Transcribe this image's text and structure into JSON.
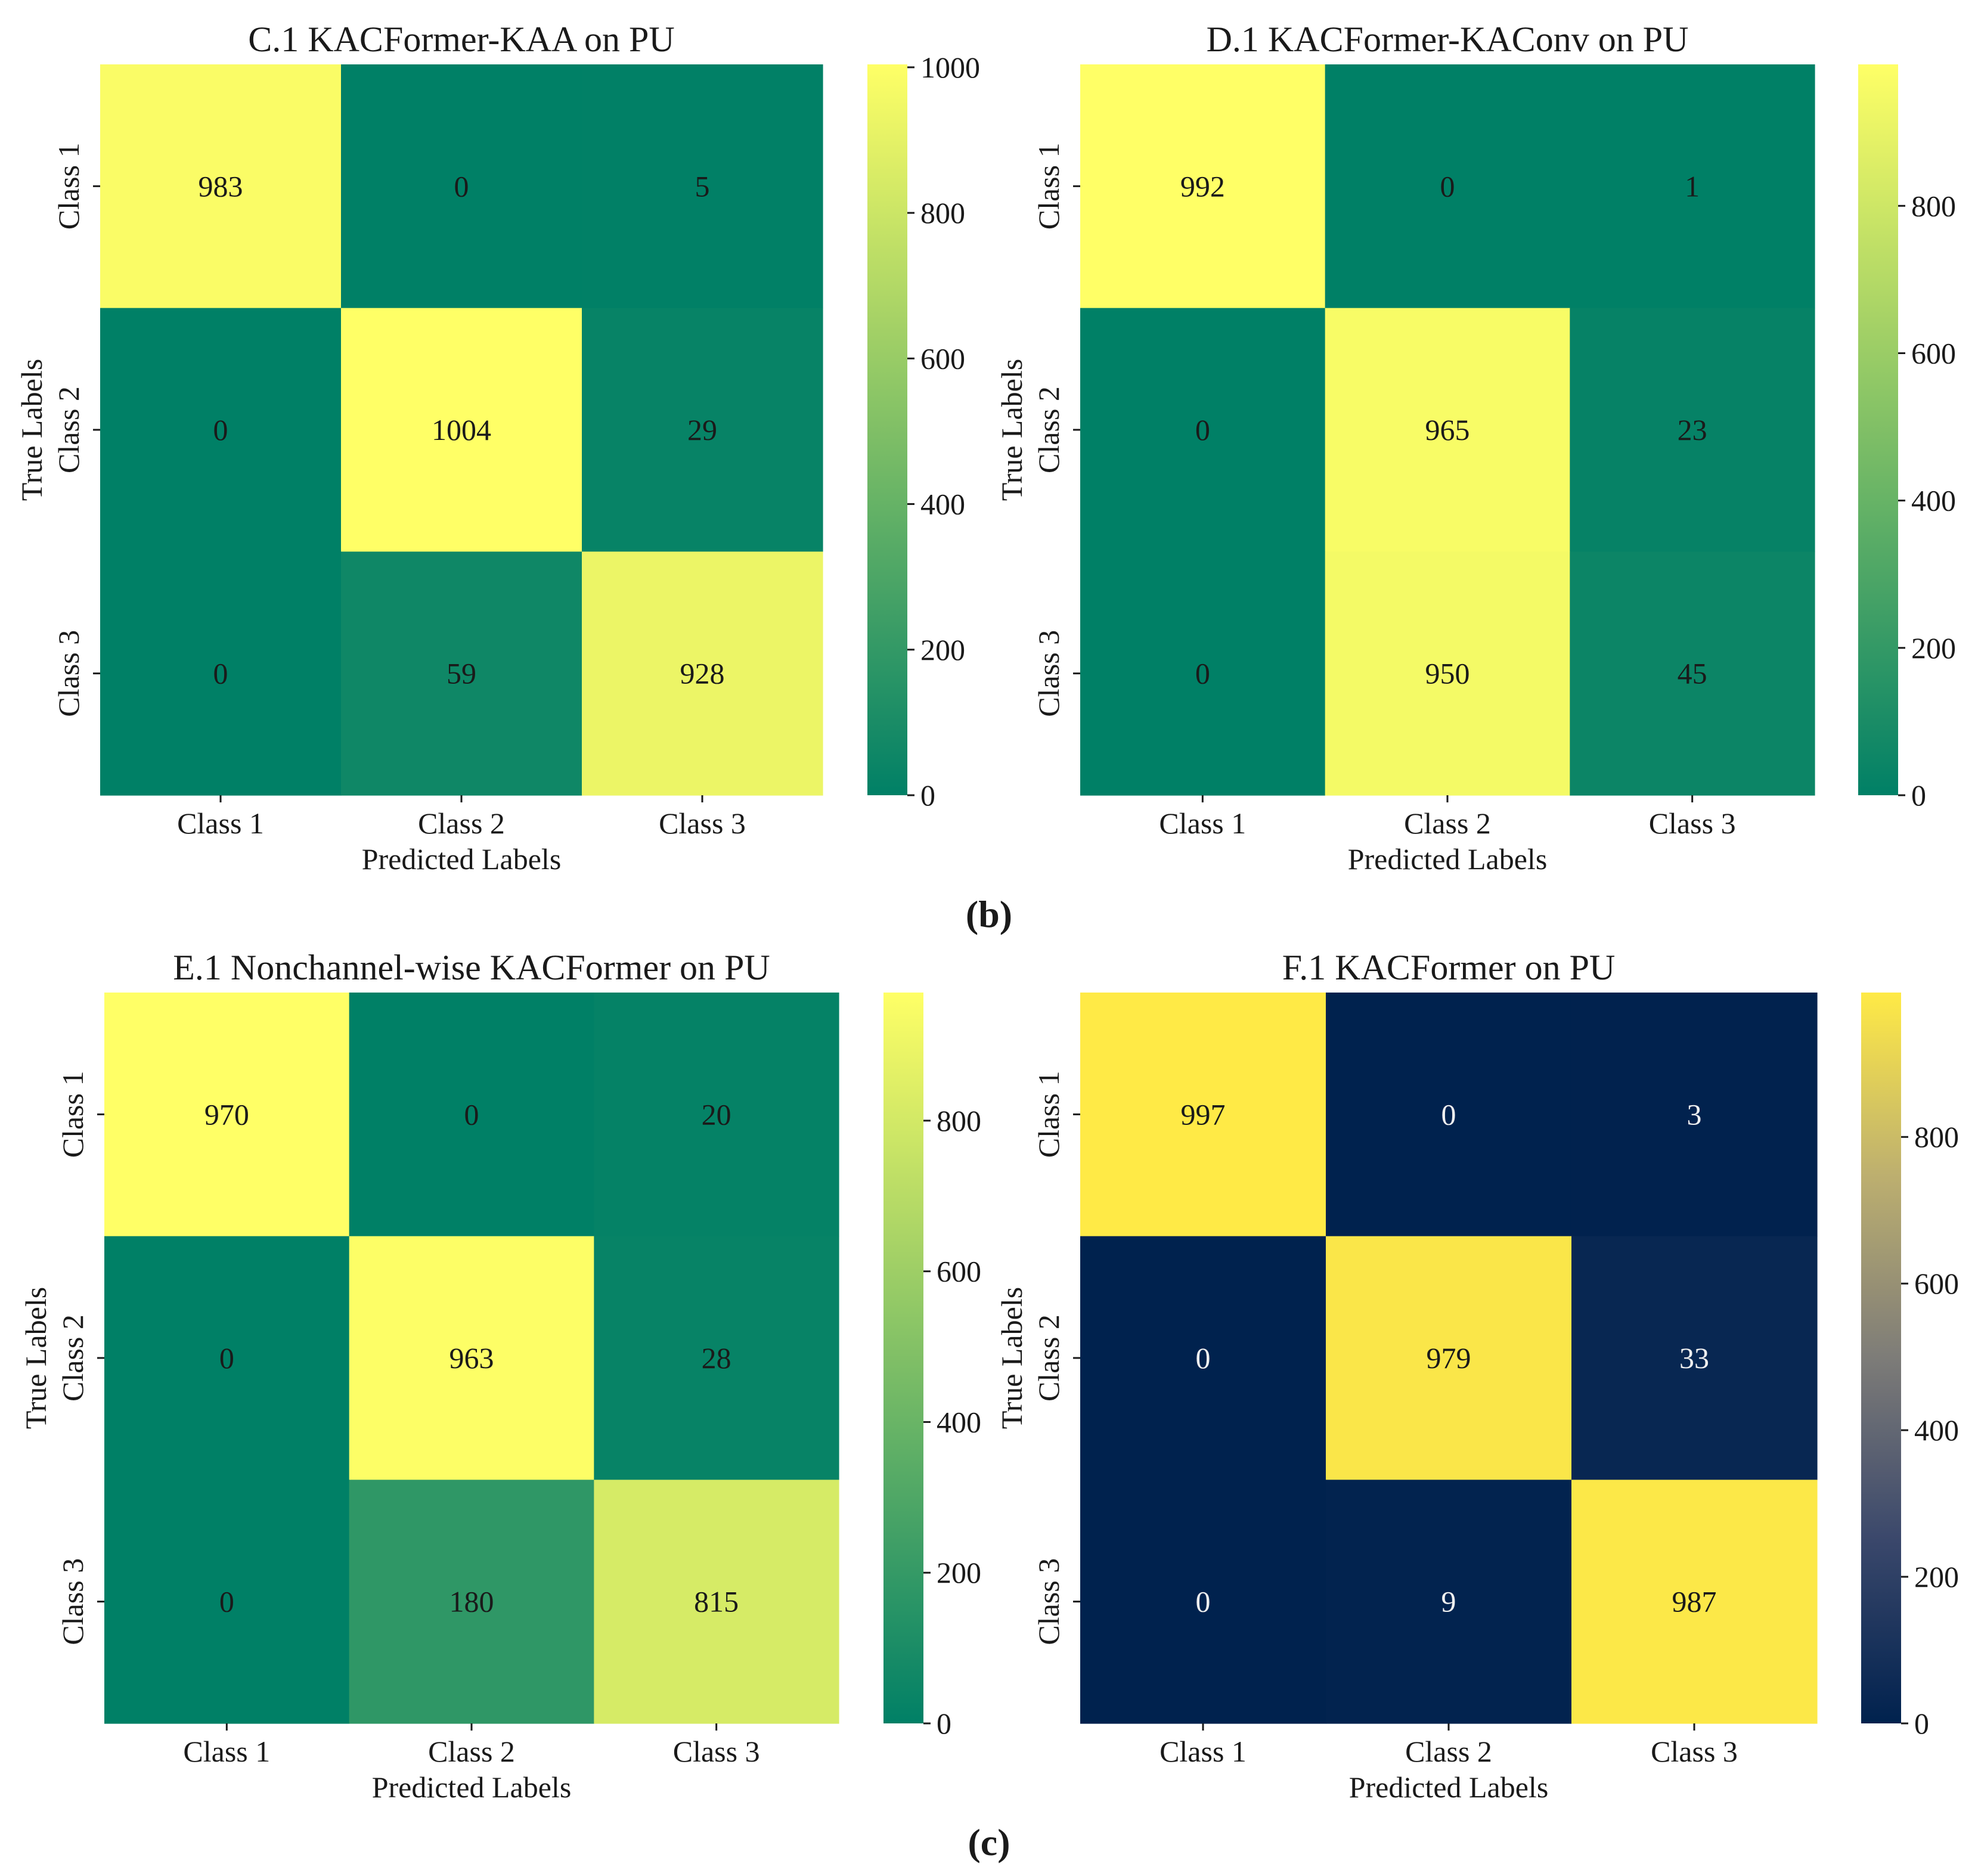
{
  "chart_data": [
    {
      "type": "heatmap",
      "title": "C.1 KACFormer-KAA on PU",
      "xlabel": "Predicted Labels",
      "ylabel": "True Labels",
      "x_categories": [
        "Class 1",
        "Class 2",
        "Class 3"
      ],
      "y_categories": [
        "Class 1",
        "Class 2",
        "Class 3"
      ],
      "matrix": [
        [
          983,
          0,
          5
        ],
        [
          0,
          1004,
          29
        ],
        [
          0,
          59,
          928
        ]
      ],
      "colormap": "summer",
      "colorbar": {
        "min": 0,
        "max": 1004,
        "ticks": [
          0,
          200,
          400,
          600,
          800,
          1000
        ]
      }
    },
    {
      "type": "heatmap",
      "title": "D.1 KACFormer-KAConv on PU",
      "xlabel": "Predicted Labels",
      "ylabel": "True Labels",
      "x_categories": [
        "Class 1",
        "Class 2",
        "Class 3"
      ],
      "y_categories": [
        "Class 1",
        "Class 2",
        "Class 3"
      ],
      "matrix": [
        [
          992,
          0,
          1
        ],
        [
          0,
          965,
          23
        ],
        [
          0,
          950,
          45
        ]
      ],
      "colormap": "summer",
      "colorbar": {
        "min": 0,
        "max": 992,
        "ticks": [
          0,
          200,
          400,
          600,
          800
        ]
      }
    },
    {
      "type": "heatmap",
      "title": "E.1 Nonchannel-wise KACFormer on PU",
      "xlabel": "Predicted Labels",
      "ylabel": "True Labels",
      "x_categories": [
        "Class 1",
        "Class 2",
        "Class 3"
      ],
      "y_categories": [
        "Class 1",
        "Class 2",
        "Class 3"
      ],
      "matrix": [
        [
          970,
          0,
          20
        ],
        [
          0,
          963,
          28
        ],
        [
          0,
          180,
          815
        ]
      ],
      "colormap": "summer",
      "colorbar": {
        "min": 0,
        "max": 970,
        "ticks": [
          0,
          200,
          400,
          600,
          800
        ]
      }
    },
    {
      "type": "heatmap",
      "title": "F.1 KACFormer on PU",
      "xlabel": "Predicted Labels",
      "ylabel": "True Labels",
      "x_categories": [
        "Class 1",
        "Class 2",
        "Class 3"
      ],
      "y_categories": [
        "Class 1",
        "Class 2",
        "Class 3"
      ],
      "matrix": [
        [
          997,
          0,
          3
        ],
        [
          0,
          979,
          33
        ],
        [
          0,
          9,
          987
        ]
      ],
      "colormap": "cividis",
      "colorbar": {
        "min": 0,
        "max": 997,
        "ticks": [
          0,
          200,
          400,
          600,
          800
        ]
      }
    }
  ],
  "panel_labels": [
    "(b)",
    "(c)"
  ]
}
